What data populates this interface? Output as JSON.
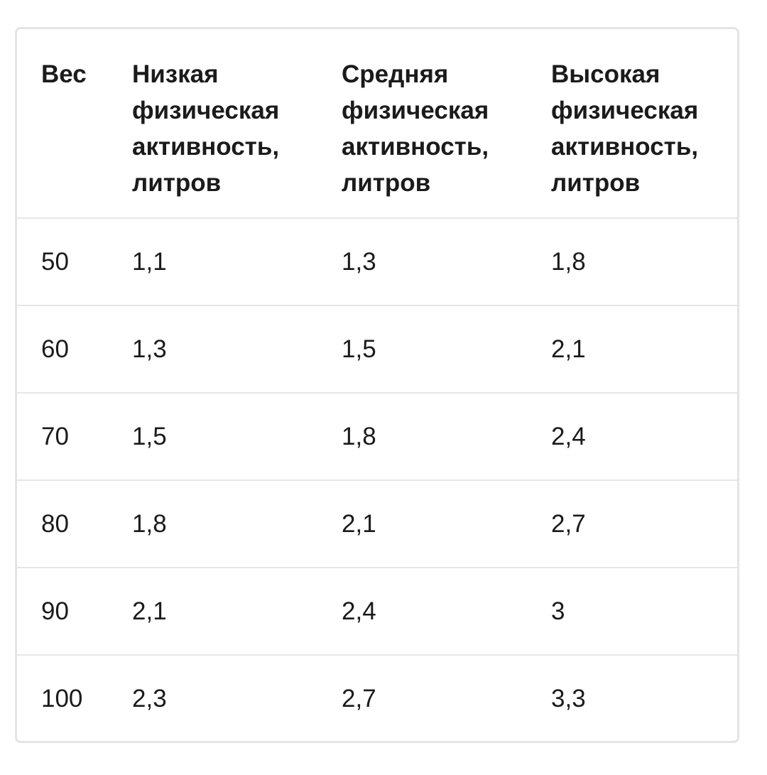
{
  "table": {
    "headers": [
      "Вес",
      "Низкая физическая активность, литров",
      "Средняя физическая активность, литров",
      "Высокая физическая активность, литров"
    ],
    "rows": [
      [
        "50",
        "1,1",
        "1,3",
        "1,8"
      ],
      [
        "60",
        "1,3",
        "1,5",
        "2,1"
      ],
      [
        "70",
        "1,5",
        "1,8",
        "2,4"
      ],
      [
        "80",
        "1,8",
        "2,1",
        "2,7"
      ],
      [
        "90",
        "2,1",
        "2,4",
        "3"
      ],
      [
        "100",
        "2,3",
        "2,7",
        "3,3"
      ]
    ]
  }
}
